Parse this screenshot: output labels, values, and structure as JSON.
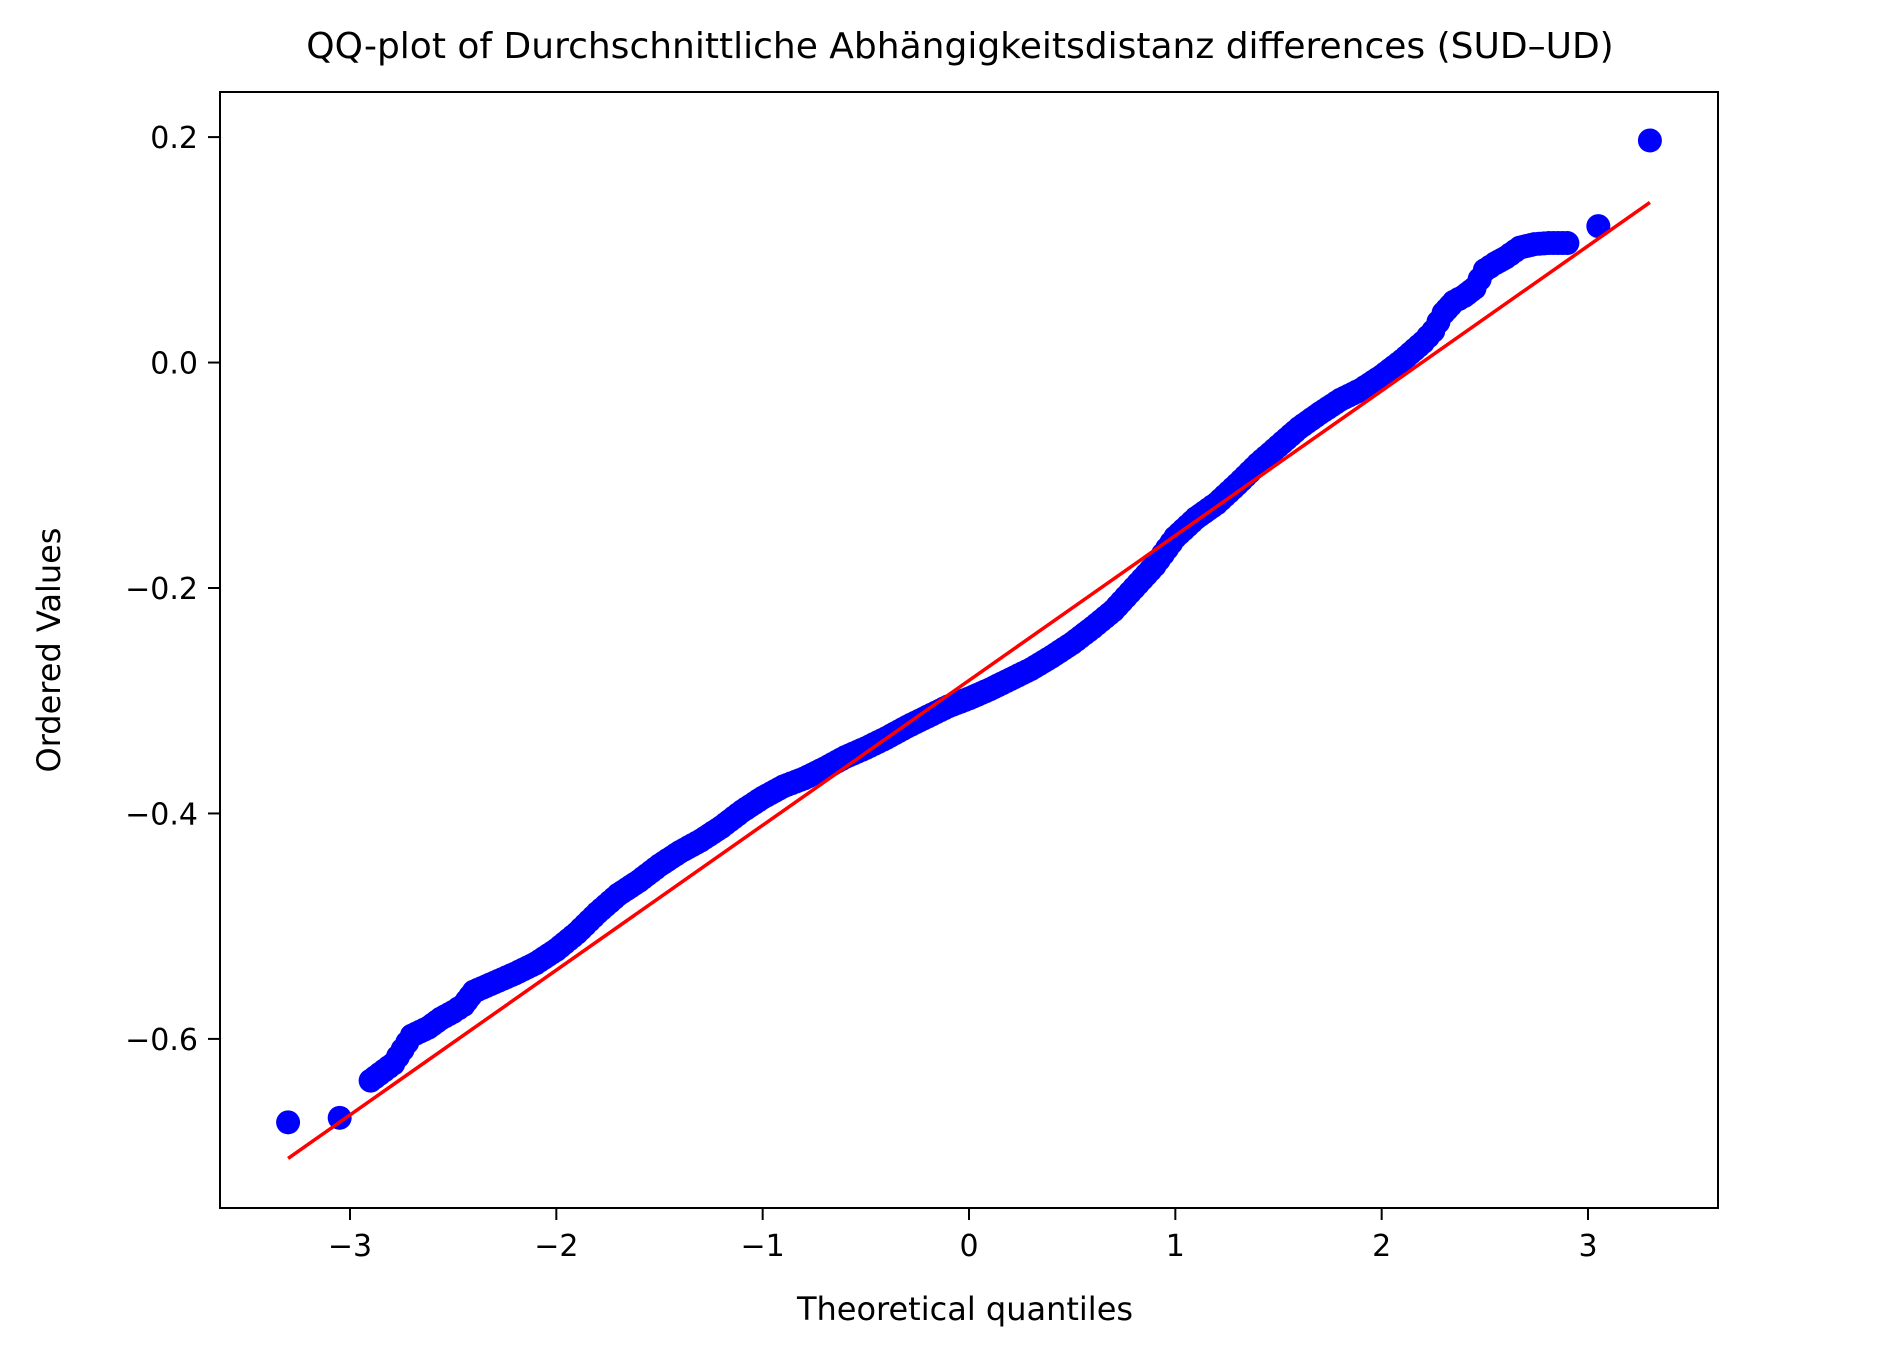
{
  "chart_data": {
    "type": "scatter",
    "title": "QQ-plot of Durchschnittliche Abhängigkeitsdistanz differences (SUD–UD)",
    "xlabel": "Theoretical quantiles",
    "ylabel": "Ordered Values",
    "xlim": [
      -3.63,
      3.63
    ],
    "ylim": [
      -0.75,
      0.24
    ],
    "xticks": [
      -3,
      -2,
      -1,
      0,
      1,
      2,
      3
    ],
    "xtick_labels": [
      "−3",
      "−2",
      "−1",
      "0",
      "1",
      "2",
      "3"
    ],
    "yticks": [
      -0.6,
      -0.4,
      -0.2,
      0.0,
      0.2
    ],
    "ytick_labels": [
      "−0.6",
      "−0.4",
      "−0.2",
      "0.0",
      "0.2"
    ],
    "grid": false,
    "series": [
      {
        "kind": "points",
        "color": "#0000ff",
        "points": [
          [
            -3.3,
            -0.674
          ],
          [
            -3.05,
            -0.67
          ],
          [
            -2.9,
            -0.637
          ],
          [
            -2.79,
            -0.622
          ],
          [
            -2.7,
            -0.597
          ],
          [
            -2.62,
            -0.59
          ],
          [
            -2.56,
            -0.582
          ],
          [
            -2.5,
            -0.576
          ],
          [
            -2.45,
            -0.57
          ],
          [
            -2.4,
            -0.558
          ],
          [
            -2.3,
            -0.55
          ],
          [
            -2.2,
            -0.542
          ],
          [
            -2.1,
            -0.533
          ],
          [
            -2.0,
            -0.521
          ],
          [
            -1.9,
            -0.506
          ],
          [
            -1.8,
            -0.488
          ],
          [
            -1.7,
            -0.472
          ],
          [
            -1.6,
            -0.46
          ],
          [
            -1.5,
            -0.446
          ],
          [
            -1.4,
            -0.434
          ],
          [
            -1.3,
            -0.424
          ],
          [
            -1.2,
            -0.412
          ],
          [
            -1.1,
            -0.398
          ],
          [
            -1.0,
            -0.386
          ],
          [
            -0.9,
            -0.376
          ],
          [
            -0.8,
            -0.369
          ],
          [
            -0.7,
            -0.36
          ],
          [
            -0.6,
            -0.35
          ],
          [
            -0.5,
            -0.342
          ],
          [
            -0.4,
            -0.333
          ],
          [
            -0.3,
            -0.323
          ],
          [
            -0.2,
            -0.314
          ],
          [
            -0.1,
            -0.305
          ],
          [
            0.0,
            -0.298
          ],
          [
            0.1,
            -0.29
          ],
          [
            0.2,
            -0.281
          ],
          [
            0.3,
            -0.272
          ],
          [
            0.4,
            -0.261
          ],
          [
            0.5,
            -0.249
          ],
          [
            0.6,
            -0.235
          ],
          [
            0.7,
            -0.22
          ],
          [
            0.8,
            -0.2
          ],
          [
            0.9,
            -0.18
          ],
          [
            1.0,
            -0.155
          ],
          [
            1.1,
            -0.138
          ],
          [
            1.2,
            -0.125
          ],
          [
            1.3,
            -0.108
          ],
          [
            1.4,
            -0.09
          ],
          [
            1.5,
            -0.074
          ],
          [
            1.6,
            -0.058
          ],
          [
            1.7,
            -0.045
          ],
          [
            1.8,
            -0.033
          ],
          [
            1.9,
            -0.024
          ],
          [
            2.0,
            -0.012
          ],
          [
            2.1,
            0.002
          ],
          [
            2.2,
            0.018
          ],
          [
            2.25,
            0.028
          ],
          [
            2.3,
            0.044
          ],
          [
            2.35,
            0.054
          ],
          [
            2.4,
            0.059
          ],
          [
            2.45,
            0.066
          ],
          [
            2.5,
            0.082
          ],
          [
            2.55,
            0.088
          ],
          [
            2.6,
            0.093
          ],
          [
            2.67,
            0.102
          ],
          [
            2.74,
            0.105
          ],
          [
            2.81,
            0.106
          ],
          [
            2.9,
            0.106
          ],
          [
            3.05,
            0.121
          ],
          [
            3.3,
            0.197
          ]
        ]
      },
      {
        "kind": "fit-line",
        "color": "#ff0000",
        "points": [
          [
            -3.3,
            -0.706
          ],
          [
            3.3,
            0.142
          ]
        ]
      }
    ]
  }
}
